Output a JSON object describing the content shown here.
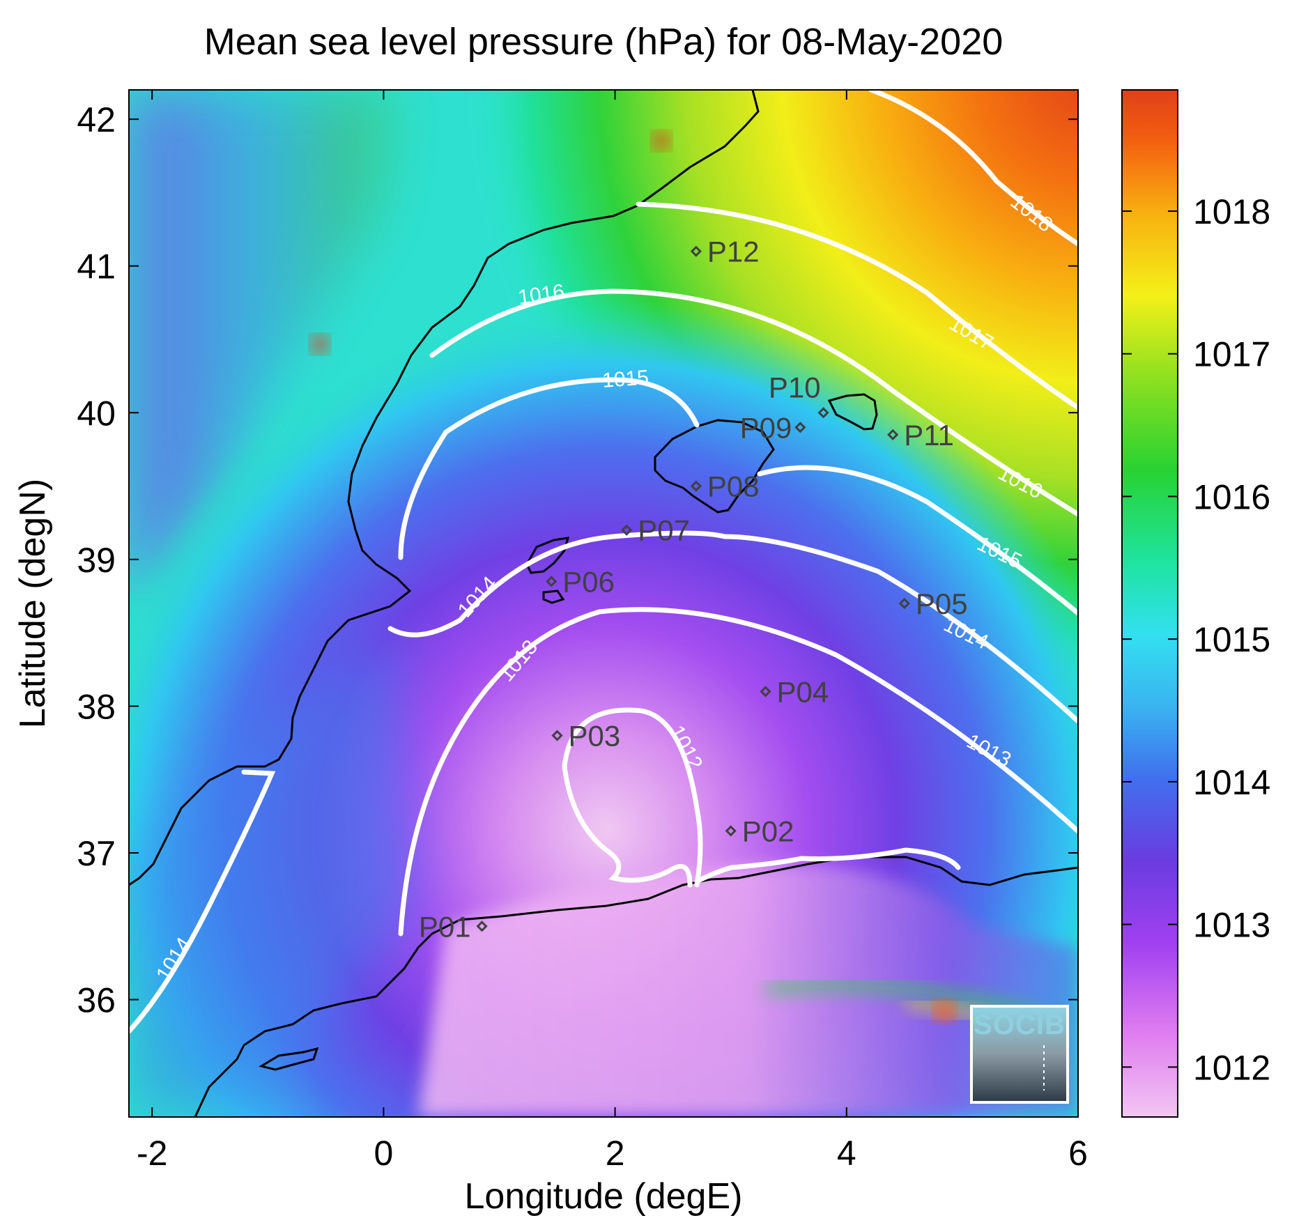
{
  "title": "Mean sea level pressure (hPa) for 08-May-2020",
  "xlabel": "Longitude (degE)",
  "ylabel": "Latitude (degN)",
  "x_ticks": [
    "-2",
    "0",
    "2",
    "4",
    "6"
  ],
  "y_ticks": [
    "42",
    "41",
    "40",
    "39",
    "38",
    "37",
    "36"
  ],
  "colorbar_ticks": [
    "1018",
    "1017",
    "1016",
    "1015",
    "1014",
    "1013",
    "1012"
  ],
  "colorbar_range_hpa": [
    1011.65,
    1018.85
  ],
  "map_extent": {
    "lon": [
      -2.2,
      6.0
    ],
    "lat": [
      35.2,
      42.2
    ]
  },
  "colormap_stops": [
    "#f2c6f2",
    "#e07ef0",
    "#a040f0",
    "#6a3ce0",
    "#3f7ff0",
    "#32e0f0",
    "#1ee4a0",
    "#28d232",
    "#8ee020",
    "#f4f018",
    "#f8b010",
    "#f46010",
    "#e04018"
  ],
  "contour_labels": [
    "1018",
    "1017",
    "1016",
    "1016",
    "1015",
    "1015",
    "1014",
    "1014",
    "1014",
    "1013",
    "1013",
    "1012"
  ],
  "stations": [
    {
      "name": "P01",
      "lon": 0.85,
      "lat": 36.5
    },
    {
      "name": "P02",
      "lon": 3.0,
      "lat": 37.15
    },
    {
      "name": "P03",
      "lon": 1.5,
      "lat": 37.8
    },
    {
      "name": "P04",
      "lon": 3.3,
      "lat": 38.1
    },
    {
      "name": "P05",
      "lon": 4.5,
      "lat": 38.7
    },
    {
      "name": "P06",
      "lon": 1.45,
      "lat": 38.85
    },
    {
      "name": "P07",
      "lon": 2.1,
      "lat": 39.2
    },
    {
      "name": "P08",
      "lon": 2.7,
      "lat": 39.5
    },
    {
      "name": "P09",
      "lon": 3.6,
      "lat": 39.9
    },
    {
      "name": "P10",
      "lon": 3.8,
      "lat": 40.0
    },
    {
      "name": "P11",
      "lon": 4.4,
      "lat": 39.85
    },
    {
      "name": "P12",
      "lon": 2.7,
      "lat": 41.1
    }
  ],
  "logo": {
    "text": "SOCIB"
  },
  "colors": {
    "coastline": "#000000",
    "contour": "#ffffff",
    "station": "#404040"
  }
}
